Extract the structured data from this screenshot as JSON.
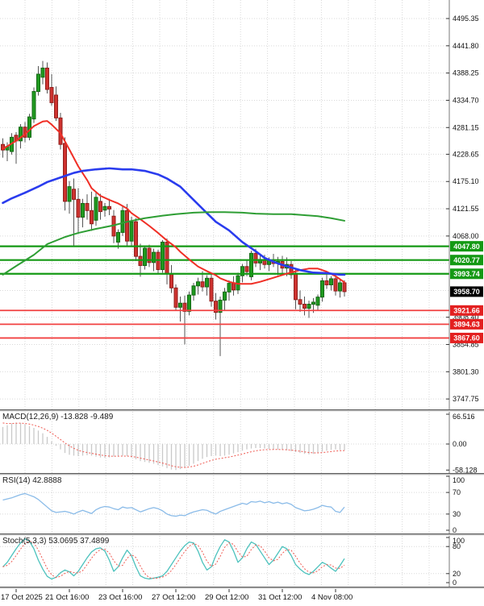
{
  "colors": {
    "background": "#ffffff",
    "grid": "#d9d9d9",
    "bull": "#1f9a1f",
    "bear": "#cf3330",
    "bull_stroke": "#156815",
    "bear_stroke": "#8f1f1c",
    "wick": "#555555",
    "ma_fast": "#f02f26",
    "ma_mid": "#2a3cee",
    "ma_slow": "#2e9e34",
    "level_green": "#149914",
    "level_red": "#f14141",
    "badge_green": "#149914",
    "badge_red": "#e32020",
    "badge_last": "#000000",
    "histogram": "#c9c9c9",
    "signal": "#ef5a52",
    "rsi_line": "#8abbe8",
    "stoch_k": "#4cc2bd",
    "axis_text": "#111111",
    "axis_line": "#7a7a7a"
  },
  "chart_data": {
    "type": "candlestick",
    "timeframe": "H4",
    "x_axis": {
      "labels": [
        {
          "index": 3,
          "text": "17 Oct 2025"
        },
        {
          "index": 15,
          "text": "21 Oct 16:00"
        },
        {
          "index": 27,
          "text": "23 Oct 16:00"
        },
        {
          "index": 39,
          "text": "27 Oct 12:00"
        },
        {
          "index": 51,
          "text": "29 Oct 12:00"
        },
        {
          "index": 63,
          "text": "31 Oct 12:00"
        },
        {
          "index": 75,
          "text": "4 Nov 08:00"
        }
      ]
    },
    "price_axis": {
      "ticks": [
        "4495.35",
        "4441.80",
        "4388.25",
        "4334.70",
        "4281.15",
        "4228.65",
        "4175.10",
        "4121.55",
        "4068.00",
        "3908.40",
        "3854.85",
        "3801.30",
        "3747.75"
      ],
      "hidden_grid_levels": [
        4014.45,
        3960.9
      ]
    },
    "last_price": {
      "value": 3958.7,
      "label": "3958.70"
    },
    "levels": [
      {
        "label": "4047.80",
        "value": 4047.8,
        "color": "green"
      },
      {
        "label": "4020.77",
        "value": 4020.77,
        "color": "green"
      },
      {
        "label": "3993.74",
        "value": 3993.74,
        "color": "green"
      },
      {
        "label": "3921.66",
        "value": 3921.66,
        "color": "red"
      },
      {
        "label": "3894.63",
        "value": 3894.63,
        "color": "red"
      },
      {
        "label": "3867.60",
        "value": 3867.6,
        "color": "red"
      }
    ],
    "candles": [
      [
        4248,
        4260,
        4222,
        4237
      ],
      [
        4237,
        4252,
        4215,
        4244
      ],
      [
        4234,
        4270,
        4228,
        4262
      ],
      [
        4266,
        4272,
        4210,
        4255
      ],
      [
        4255,
        4288,
        4240,
        4282
      ],
      [
        4282,
        4292,
        4252,
        4262
      ],
      [
        4262,
        4308,
        4256,
        4302
      ],
      [
        4298,
        4360,
        4290,
        4352
      ],
      [
        4352,
        4402,
        4344,
        4386
      ],
      [
        4380,
        4412,
        4366,
        4398
      ],
      [
        4398,
        4409,
        4348,
        4356
      ],
      [
        4360,
        4386,
        4324,
        4330
      ],
      [
        4345,
        4362,
        4294,
        4300
      ],
      [
        4300,
        4310,
        4238,
        4248
      ],
      [
        4250,
        4262,
        4118,
        4136
      ],
      [
        4136,
        4176,
        4112,
        4165
      ],
      [
        4160,
        4181,
        4048,
        4140
      ],
      [
        4140,
        4162,
        4072,
        4105
      ],
      [
        4105,
        4141,
        4085,
        4132
      ],
      [
        4132,
        4150,
        4100,
        4118
      ],
      [
        4118,
        4155,
        4078,
        4092
      ],
      [
        4099,
        4156,
        4088,
        4144
      ],
      [
        4136,
        4151,
        4100,
        4116
      ],
      [
        4119,
        4133,
        4106,
        4126
      ],
      [
        4126,
        4141,
        4109,
        4121
      ],
      [
        4107,
        4119,
        4054,
        4068
      ],
      [
        4056,
        4081,
        4043,
        4075
      ],
      [
        4075,
        4128,
        4068,
        4118
      ],
      [
        4118,
        4131,
        4047,
        4058
      ],
      [
        4058,
        4106,
        4049,
        4096
      ],
      [
        4096,
        4103,
        4019,
        4028
      ],
      [
        4028,
        4053,
        3988,
        4010
      ],
      [
        4010,
        4049,
        4002,
        4044
      ],
      [
        4044,
        4051,
        4007,
        4016
      ],
      [
        4016,
        4043,
        3999,
        4036
      ],
      [
        4036,
        4041,
        3995,
        4002
      ],
      [
        4002,
        4060,
        3996,
        4056
      ],
      [
        4056,
        4063,
        3973,
        3994
      ],
      [
        3994,
        4011,
        3956,
        3966
      ],
      [
        3966,
        3973,
        3921,
        3928
      ],
      [
        3928,
        3949,
        3900,
        3936
      ],
      [
        3936,
        3951,
        3855,
        3920
      ],
      [
        3920,
        3959,
        3912,
        3952
      ],
      [
        3952,
        3976,
        3941,
        3970
      ],
      [
        3970,
        3986,
        3953,
        3978
      ],
      [
        3978,
        3999,
        3959,
        3968
      ],
      [
        3968,
        3991,
        3951,
        3985
      ],
      [
        3985,
        3993,
        3929,
        3940
      ],
      [
        3940,
        3956,
        3904,
        3918
      ],
      [
        3918,
        3949,
        3832,
        3942
      ],
      [
        3942,
        3966,
        3921,
        3958
      ],
      [
        3958,
        3981,
        3941,
        3975
      ],
      [
        3975,
        3989,
        3951,
        3962
      ],
      [
        3962,
        3996,
        3954,
        3990
      ],
      [
        3990,
        4013,
        3977,
        4008
      ],
      [
        4008,
        4021,
        3989,
        3998
      ],
      [
        3988,
        4039,
        3981,
        4034
      ],
      [
        4034,
        4043,
        4007,
        4015
      ],
      [
        4015,
        4029,
        4001,
        4022
      ],
      [
        4022,
        4031,
        4004,
        4012
      ],
      [
        4012,
        4026,
        3999,
        4020
      ],
      [
        4020,
        4033,
        4007,
        4014
      ],
      [
        4014,
        4027,
        3991,
        4018
      ],
      [
        4018,
        4029,
        3995,
        4005
      ],
      [
        4005,
        4026,
        3989,
        4012
      ],
      [
        4012,
        4019,
        3984,
        3992
      ],
      [
        3995,
        4003,
        3924,
        3943
      ],
      [
        3943,
        3961,
        3919,
        3934
      ],
      [
        3934,
        3949,
        3912,
        3926
      ],
      [
        3926,
        3941,
        3907,
        3934
      ],
      [
        3934,
        3946,
        3917,
        3938
      ],
      [
        3932,
        3953,
        3921,
        3948
      ],
      [
        3948,
        3986,
        3939,
        3980
      ],
      [
        3980,
        3993,
        3964,
        3972
      ],
      [
        3972,
        3989,
        3961,
        3984
      ],
      [
        3984,
        3991,
        3951,
        3960
      ],
      [
        3960,
        3983,
        3947,
        3976
      ],
      [
        3976,
        3981,
        3949,
        3958.7
      ]
    ],
    "moving_averages": [
      {
        "name": "ma-fast-red",
        "color_key": "ma_fast",
        "width": 2,
        "points": [
          [
            0,
            4239
          ],
          [
            3,
            4255
          ],
          [
            5,
            4268
          ],
          [
            7,
            4284
          ],
          [
            9,
            4293
          ],
          [
            10,
            4294
          ],
          [
            11,
            4287
          ],
          [
            13,
            4270
          ],
          [
            15,
            4238
          ],
          [
            17,
            4205
          ],
          [
            19,
            4178
          ],
          [
            20,
            4162
          ],
          [
            22,
            4147
          ],
          [
            24,
            4139
          ],
          [
            26,
            4132
          ],
          [
            28,
            4122
          ],
          [
            29,
            4113
          ],
          [
            31,
            4101
          ],
          [
            33,
            4088
          ],
          [
            35,
            4074
          ],
          [
            37,
            4059
          ],
          [
            39,
            4046
          ],
          [
            40,
            4037
          ],
          [
            42,
            4022
          ],
          [
            44,
            4008
          ],
          [
            46,
            3999
          ],
          [
            48,
            3991
          ],
          [
            49,
            3985
          ],
          [
            51,
            3978
          ],
          [
            53,
            3974
          ],
          [
            56,
            3974
          ],
          [
            58,
            3978
          ],
          [
            61,
            3986
          ],
          [
            64,
            3994
          ],
          [
            67,
            4001
          ],
          [
            69,
            4004
          ],
          [
            71,
            4004
          ],
          [
            73,
            3998
          ],
          [
            75,
            3989
          ],
          [
            77,
            3977
          ]
        ]
      },
      {
        "name": "ma-mid-blue",
        "color_key": "ma_mid",
        "width": 2.6,
        "points": [
          [
            0,
            4133
          ],
          [
            2,
            4142
          ],
          [
            5,
            4153
          ],
          [
            8,
            4165
          ],
          [
            10,
            4174
          ],
          [
            13,
            4183
          ],
          [
            16,
            4192
          ],
          [
            18,
            4196
          ],
          [
            21,
            4199
          ],
          [
            24,
            4201
          ],
          [
            27,
            4199
          ],
          [
            29,
            4199
          ],
          [
            32,
            4196
          ],
          [
            35,
            4189
          ],
          [
            37,
            4181
          ],
          [
            40,
            4165
          ],
          [
            43,
            4139
          ],
          [
            46,
            4113
          ],
          [
            48,
            4096
          ],
          [
            51,
            4079
          ],
          [
            54,
            4056
          ],
          [
            57,
            4038
          ],
          [
            59,
            4025
          ],
          [
            62,
            4014
          ],
          [
            65,
            4006
          ],
          [
            67,
            4001
          ],
          [
            70,
            3996
          ],
          [
            73,
            3995
          ],
          [
            76,
            3992
          ],
          [
            77,
            3992
          ]
        ]
      },
      {
        "name": "ma-slow-green",
        "color_key": "ma_slow",
        "width": 2,
        "points": [
          [
            0,
            3992
          ],
          [
            3,
            4009
          ],
          [
            7,
            4031
          ],
          [
            10,
            4052
          ],
          [
            14,
            4066
          ],
          [
            17,
            4074
          ],
          [
            21,
            4082
          ],
          [
            25,
            4089
          ],
          [
            28,
            4096
          ],
          [
            32,
            4103
          ],
          [
            36,
            4108
          ],
          [
            39,
            4111
          ],
          [
            43,
            4114
          ],
          [
            47,
            4115
          ],
          [
            50,
            4115
          ],
          [
            54,
            4114
          ],
          [
            57,
            4112
          ],
          [
            61,
            4111
          ],
          [
            65,
            4111
          ],
          [
            68,
            4109
          ],
          [
            71,
            4107
          ],
          [
            74,
            4103
          ],
          [
            77,
            4098
          ]
        ]
      }
    ],
    "indicators": {
      "macd": {
        "label": "MACD(12,26,9) -13.828 -9.489",
        "axis_labels": [
          [
            "66.516",
            66.516
          ],
          [
            "0.00",
            0
          ],
          [
            "-58.128",
            -58.128
          ]
        ],
        "grid": [
          0
        ],
        "values": [
          38,
          42,
          46,
          48,
          47,
          44,
          40,
          36,
          30,
          24,
          16,
          6,
          -4,
          -12,
          -20,
          -24,
          -26,
          -27,
          -26,
          -25,
          -26,
          -28,
          -30,
          -31,
          -30,
          -28,
          -27,
          -26,
          -27,
          -30,
          -34,
          -38,
          -40,
          -42,
          -44,
          -47,
          -50,
          -54,
          -57,
          -58,
          -56,
          -53,
          -49,
          -44,
          -38,
          -33,
          -29,
          -27,
          -26,
          -27,
          -26,
          -24,
          -21,
          -18,
          -15,
          -12,
          -10,
          -9,
          -9,
          -10,
          -11,
          -12,
          -12,
          -13,
          -14,
          -16,
          -18,
          -20,
          -22,
          -23,
          -22,
          -20,
          -17,
          -15,
          -13,
          -12,
          -13,
          -13.828
        ]
      },
      "rsi": {
        "label": "RSI(14) 42.8888",
        "axis_labels": [
          [
            "100",
            100
          ],
          [
            "70",
            70
          ],
          [
            "30",
            30
          ],
          [
            "0",
            0
          ]
        ],
        "grid": [
          70,
          30
        ],
        "values": [
          56,
          58,
          60,
          63,
          66,
          68,
          65,
          62,
          57,
          50,
          43,
          36,
          33,
          34,
          35,
          33,
          30,
          34,
          37,
          34,
          31,
          38,
          42,
          44,
          43,
          40,
          38,
          43,
          41,
          42,
          38,
          34,
          37,
          40,
          42,
          40,
          36,
          30,
          27,
          26,
          28,
          27,
          31,
          34,
          36,
          38,
          37,
          33,
          30,
          35,
          38,
          41,
          44,
          47,
          50,
          48,
          53,
          52,
          54,
          51,
          53,
          50,
          52,
          49,
          51,
          48,
          42,
          39,
          36,
          37,
          39,
          42,
          46,
          44,
          43,
          35,
          33,
          42.8888
        ]
      },
      "stoch": {
        "label": "Stoch(5,3,3) 53.0695 37.4899",
        "axis_labels": [
          [
            "100",
            100
          ],
          [
            "80",
            80
          ],
          [
            "20",
            20
          ],
          [
            "0",
            0
          ]
        ],
        "grid": [
          80,
          20
        ],
        "k_values": [
          35,
          45,
          60,
          75,
          88,
          97,
          92,
          75,
          50,
          30,
          14,
          8,
          12,
          22,
          28,
          24,
          15,
          25,
          40,
          55,
          68,
          75,
          77,
          70,
          50,
          25,
          35,
          55,
          72,
          60,
          35,
          15,
          10,
          8,
          10,
          12,
          15,
          25,
          40,
          55,
          70,
          82,
          90,
          88,
          70,
          45,
          28,
          35,
          60,
          80,
          95,
          90,
          70,
          45,
          55,
          75,
          90,
          85,
          70,
          55,
          40,
          50,
          65,
          80,
          75,
          60,
          40,
          30,
          22,
          18,
          25,
          35,
          45,
          40,
          32,
          25,
          38,
          53.0695
        ]
      }
    }
  }
}
